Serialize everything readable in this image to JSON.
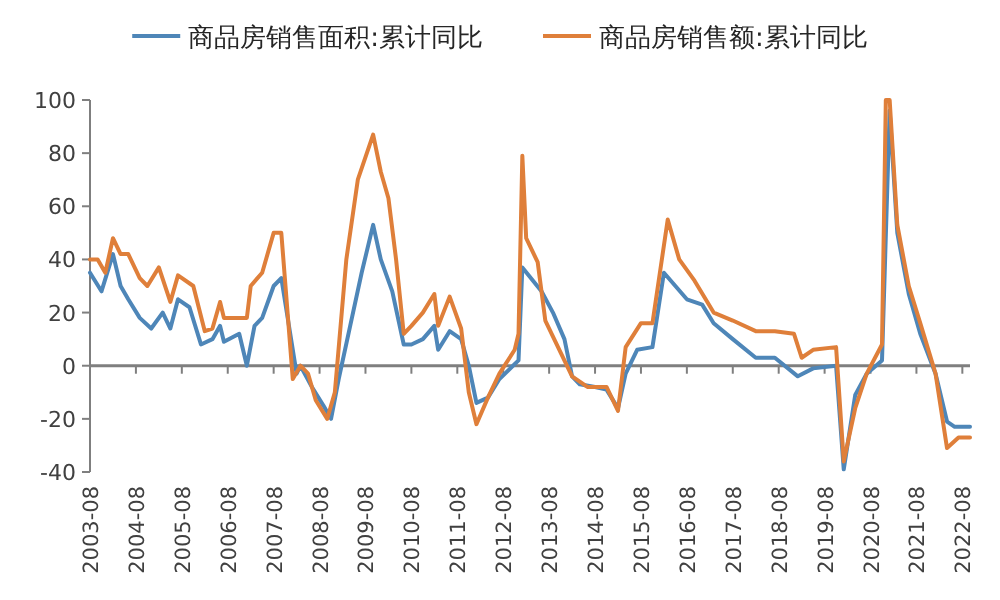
{
  "chart_data": {
    "type": "line",
    "legend": "top",
    "ylim": [
      -40,
      100
    ],
    "yticks": [
      -40,
      -20,
      0,
      20,
      40,
      60,
      80,
      100
    ],
    "xlim": [
      "2003-08",
      "2022-10"
    ],
    "xticks": [
      "2003-08",
      "2004-08",
      "2005-08",
      "2006-08",
      "2007-08",
      "2008-08",
      "2009-08",
      "2010-08",
      "2011-08",
      "2012-08",
      "2013-08",
      "2014-08",
      "2015-08",
      "2016-08",
      "2017-08",
      "2018-08",
      "2019-08",
      "2020-08",
      "2021-08",
      "2022-08"
    ],
    "series": [
      {
        "name": "商品房销售面积:累计同比",
        "color": "#4e86b8",
        "x": [
          "2003-08",
          "2003-11",
          "2004-02",
          "2004-04",
          "2004-06",
          "2004-09",
          "2004-12",
          "2005-03",
          "2005-05",
          "2005-07",
          "2005-10",
          "2006-01",
          "2006-04",
          "2006-06",
          "2006-07",
          "2006-11",
          "2007-01",
          "2007-03",
          "2007-05",
          "2007-08",
          "2007-10",
          "2008-02",
          "2008-03",
          "2008-06",
          "2008-09",
          "2008-11",
          "2009-01",
          "2009-04",
          "2009-07",
          "2009-10",
          "2009-12",
          "2010-03",
          "2010-06",
          "2010-08",
          "2010-11",
          "2011-02",
          "2011-03",
          "2011-06",
          "2011-09",
          "2011-11",
          "2012-01",
          "2012-04",
          "2012-07",
          "2012-12",
          "2013-01",
          "2013-06",
          "2013-09",
          "2013-12",
          "2014-02",
          "2014-04",
          "2014-08",
          "2014-11",
          "2015-02",
          "2015-04",
          "2015-07",
          "2015-11",
          "2016-02",
          "2016-05",
          "2016-08",
          "2016-12",
          "2017-03",
          "2017-08",
          "2018-02",
          "2018-07",
          "2019-01",
          "2019-05",
          "2019-11",
          "2020-01",
          "2020-04",
          "2020-07",
          "2020-11",
          "2021-01",
          "2021-03",
          "2021-06",
          "2021-09",
          "2022-01",
          "2022-04",
          "2022-06",
          "2022-10"
        ],
        "values": [
          35,
          28,
          42,
          30,
          25,
          18,
          14,
          20,
          14,
          25,
          22,
          8,
          10,
          15,
          9,
          12,
          0,
          15,
          18,
          30,
          33,
          -3,
          0,
          -8,
          -15,
          -20,
          -5,
          15,
          35,
          53,
          40,
          28,
          8,
          8,
          10,
          15,
          6,
          13,
          10,
          0,
          -14,
          -12,
          -5,
          2,
          37,
          28,
          20,
          10,
          -4,
          -7,
          -8,
          -9,
          -16,
          -3,
          6,
          7,
          35,
          30,
          25,
          23,
          16,
          10,
          3,
          3,
          -4,
          -1,
          0,
          -39,
          -11,
          -3,
          2,
          96,
          50,
          27,
          12,
          -3,
          -21,
          -23,
          -23
        ]
      },
      {
        "name": "商品房销售额:累计同比",
        "color": "#df7f3a",
        "x": [
          "2003-08",
          "2003-10",
          "2003-12",
          "2004-02",
          "2004-04",
          "2004-06",
          "2004-09",
          "2004-11",
          "2005-02",
          "2005-05",
          "2005-07",
          "2005-11",
          "2006-02",
          "2006-04",
          "2006-06",
          "2006-07",
          "2006-11",
          "2007-01",
          "2007-02",
          "2007-05",
          "2007-08",
          "2007-10",
          "2008-01",
          "2008-03",
          "2008-05",
          "2008-07",
          "2008-10",
          "2008-12",
          "2009-03",
          "2009-06",
          "2009-10",
          "2009-12",
          "2010-02",
          "2010-04",
          "2010-06",
          "2010-08",
          "2010-11",
          "2011-02",
          "2011-03",
          "2011-06",
          "2011-09",
          "2011-11",
          "2012-01",
          "2012-04",
          "2012-07",
          "2012-11",
          "2012-12",
          "2013-01",
          "2013-02",
          "2013-05",
          "2013-07",
          "2014-02",
          "2014-06",
          "2014-11",
          "2015-02",
          "2015-04",
          "2015-08",
          "2015-11",
          "2016-03",
          "2016-06",
          "2016-10",
          "2017-03",
          "2017-08",
          "2018-02",
          "2018-07",
          "2018-12",
          "2019-02",
          "2019-05",
          "2019-11",
          "2020-01",
          "2020-04",
          "2020-07",
          "2020-11",
          "2020-12",
          "2021-01",
          "2021-03",
          "2021-06",
          "2021-09",
          "2022-01",
          "2022-04",
          "2022-07",
          "2022-10"
        ],
        "values": [
          40,
          40,
          35,
          48,
          42,
          42,
          33,
          30,
          37,
          24,
          34,
          30,
          13,
          14,
          24,
          18,
          18,
          18,
          30,
          35,
          50,
          50,
          -5,
          0,
          -3,
          -13,
          -20,
          -10,
          40,
          70,
          87,
          73,
          63,
          40,
          12,
          15,
          20,
          27,
          15,
          26,
          14,
          -10,
          -22,
          -12,
          -3,
          6,
          12,
          79,
          48,
          39,
          17,
          -4,
          -8,
          -8,
          -17,
          7,
          16,
          16,
          55,
          40,
          32,
          20,
          17,
          13,
          13,
          12,
          3,
          6,
          7,
          -36,
          -16,
          -3,
          8,
          100,
          100,
          53,
          30,
          16,
          -3,
          -31,
          -27,
          -27
        ]
      }
    ]
  }
}
